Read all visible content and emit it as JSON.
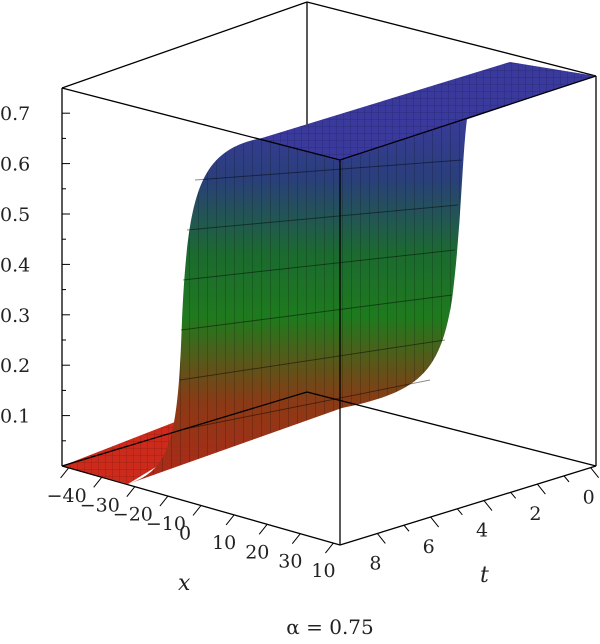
{
  "chart_data": {
    "type": "surface3d",
    "z_ticks": [
      "0.1",
      "0.2",
      "0.3",
      "0.4",
      "0.5",
      "0.6",
      "0.7"
    ],
    "z_tick_values": [
      0.1,
      0.2,
      0.3,
      0.4,
      0.5,
      0.6,
      0.7
    ],
    "zlim": [
      0,
      0.75
    ],
    "x_label": "x",
    "x_ticks": [
      "−40",
      "−30",
      "−20",
      "−10",
      "0",
      "10",
      "20",
      "30",
      "10"
    ],
    "t_label": "t",
    "t_ticks": [
      "0",
      "2",
      "4",
      "6",
      "8"
    ],
    "surface": {
      "low_value": 0.0,
      "high_value": 0.75,
      "transition_center_x": -10,
      "low_color": "#cc2b1c",
      "mid_color": "#1f7a1f",
      "high_color": "#3a3a9c"
    },
    "caption": "α = 0.75"
  }
}
